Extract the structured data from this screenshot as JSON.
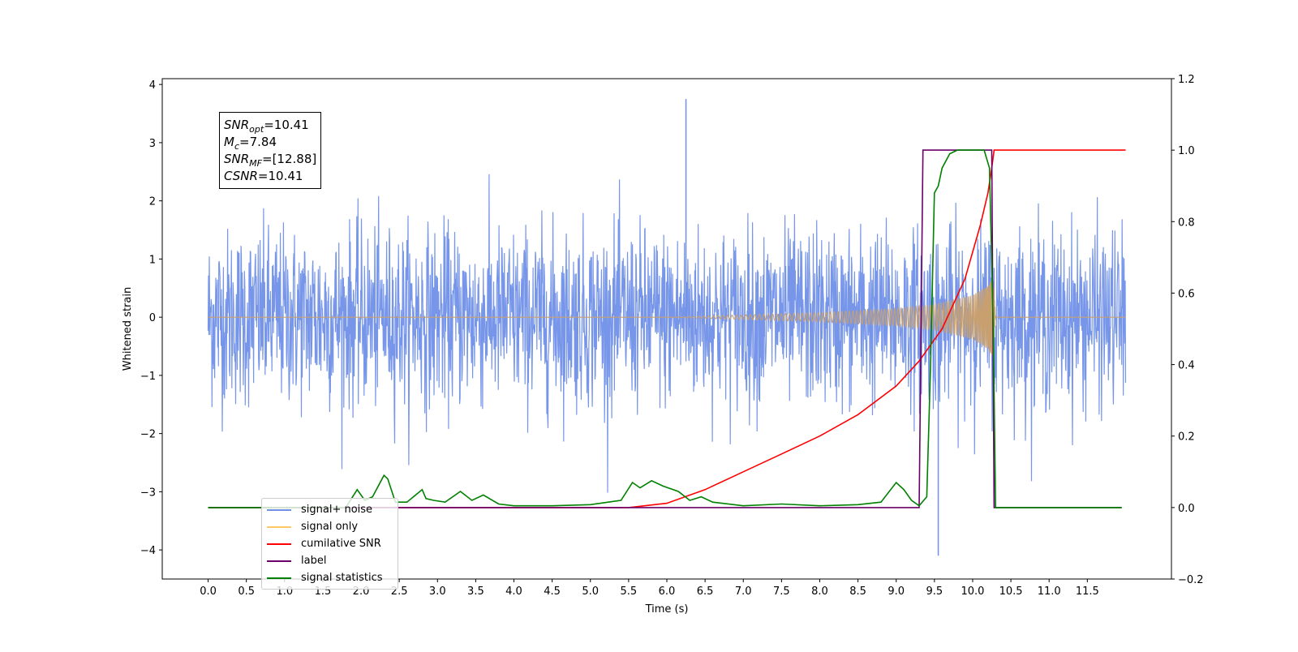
{
  "chart_data": {
    "type": "line",
    "xlabel": "Time (s)",
    "ylabel": "Whitened strain",
    "xlim": [
      -0.6,
      12.6
    ],
    "ylim": [
      -4.5,
      4.1
    ],
    "y2lim": [
      -0.2,
      1.2
    ],
    "x_ticks": [
      0.0,
      0.5,
      1.0,
      1.5,
      2.0,
      2.5,
      3.0,
      3.5,
      4.0,
      4.5,
      5.0,
      5.5,
      6.0,
      6.5,
      7.0,
      7.5,
      8.0,
      8.5,
      9.0,
      9.5,
      10.0,
      10.5,
      11.0,
      11.5
    ],
    "x_tick_labels": [
      "0.0",
      "0.5",
      "1.0",
      "1.5",
      "2.0",
      "2.5",
      "3.0",
      "3.5",
      "4.0",
      "4.5",
      "5.0",
      "5.5",
      "6.0",
      "6.5",
      "7.0",
      "7.5",
      "8.0",
      "8.5",
      "9.0",
      "9.5",
      "10.0",
      "10.5",
      "11.0",
      "11.5"
    ],
    "y_ticks": [
      -4,
      -3,
      -2,
      -1,
      0,
      1,
      2,
      3,
      4
    ],
    "y_tick_labels": [
      "−4",
      "−3",
      "−2",
      "−1",
      "0",
      "1",
      "2",
      "3",
      "4"
    ],
    "y2_ticks": [
      -0.2,
      0.0,
      0.2,
      0.4,
      0.6,
      0.8,
      1.0,
      1.2
    ],
    "y2_tick_labels": [
      "−0.2",
      "0.0",
      "0.2",
      "0.4",
      "0.6",
      "0.8",
      "1.0",
      "1.2"
    ],
    "grid": false,
    "legend_position": "lower-left",
    "series": [
      {
        "name": "signal+ noise",
        "axis": "left",
        "color": "#7090e8",
        "description_values": {
          "x_start": 0.0,
          "x_end": 12.0,
          "typical_envelope": [
            -1.5,
            1.5
          ],
          "max_peak": 3.75,
          "max_peak_x": 6.25,
          "min_trough": -4.1,
          "min_trough_x": 9.55
        }
      },
      {
        "name": "signal only",
        "axis": "left",
        "color": "#c8a070",
        "envelope": {
          "x": [
            0.0,
            6.0,
            7.0,
            8.0,
            9.0,
            9.5,
            10.0,
            10.2,
            10.27,
            10.3,
            12.0
          ],
          "amp": [
            0.0,
            0.0,
            0.04,
            0.08,
            0.15,
            0.22,
            0.38,
            0.55,
            0.72,
            0.0,
            0.0
          ]
        }
      },
      {
        "name": "cumilative SNR",
        "axis": "right",
        "color": "#ff0000",
        "x": [
          0.0,
          5.5,
          6.0,
          6.5,
          7.0,
          7.5,
          8.0,
          8.5,
          9.0,
          9.3,
          9.6,
          9.9,
          10.1,
          10.2,
          10.25,
          10.28,
          10.3,
          12.0
        ],
        "values": [
          0.0,
          0.0,
          0.012,
          0.05,
          0.1,
          0.15,
          0.2,
          0.26,
          0.34,
          0.41,
          0.5,
          0.64,
          0.79,
          0.88,
          0.95,
          1.0,
          1.0,
          1.0
        ]
      },
      {
        "name": "label",
        "axis": "right",
        "color": "#6a006a",
        "x": [
          0.0,
          9.3,
          9.35,
          10.25,
          10.28,
          11.95
        ],
        "values": [
          0.0,
          0.0,
          1.0,
          1.0,
          0.0,
          0.0
        ]
      },
      {
        "name": "signal statistics",
        "axis": "right",
        "color": "#008000",
        "x": [
          0.0,
          1.8,
          1.95,
          2.05,
          2.15,
          2.3,
          2.35,
          2.45,
          2.6,
          2.8,
          2.85,
          2.95,
          3.1,
          3.3,
          3.45,
          3.6,
          3.8,
          4.0,
          4.5,
          5.0,
          5.4,
          5.55,
          5.65,
          5.8,
          5.95,
          6.15,
          6.3,
          6.45,
          6.6,
          7.0,
          7.5,
          8.0,
          8.5,
          8.8,
          9.0,
          9.1,
          9.2,
          9.3,
          9.4,
          9.45,
          9.5,
          9.55,
          9.6,
          9.7,
          9.8,
          10.0,
          10.15,
          10.22,
          10.27,
          10.3,
          11.95
        ],
        "values": [
          0.0,
          0.0,
          0.05,
          0.02,
          0.03,
          0.09,
          0.08,
          0.015,
          0.015,
          0.05,
          0.025,
          0.02,
          0.015,
          0.045,
          0.02,
          0.035,
          0.01,
          0.005,
          0.005,
          0.008,
          0.02,
          0.07,
          0.055,
          0.075,
          0.06,
          0.045,
          0.02,
          0.03,
          0.015,
          0.005,
          0.01,
          0.005,
          0.008,
          0.015,
          0.07,
          0.05,
          0.02,
          0.005,
          0.03,
          0.4,
          0.88,
          0.9,
          0.95,
          0.99,
          1.0,
          1.0,
          1.0,
          0.95,
          0.5,
          0.0,
          0.0
        ]
      }
    ],
    "annotations": [
      {
        "label_var": "SNR",
        "label_sub": "opt",
        "value": "=10.41"
      },
      {
        "label_var": "M",
        "label_sub": "c",
        "value": "=7.84"
      },
      {
        "label_var": "SNR",
        "label_sub": "MF",
        "value": "=[12.88]"
      },
      {
        "label_var": "CSNR",
        "label_sub": "",
        "value": "=10.41"
      }
    ],
    "legend_ghost_text": "signal only"
  }
}
